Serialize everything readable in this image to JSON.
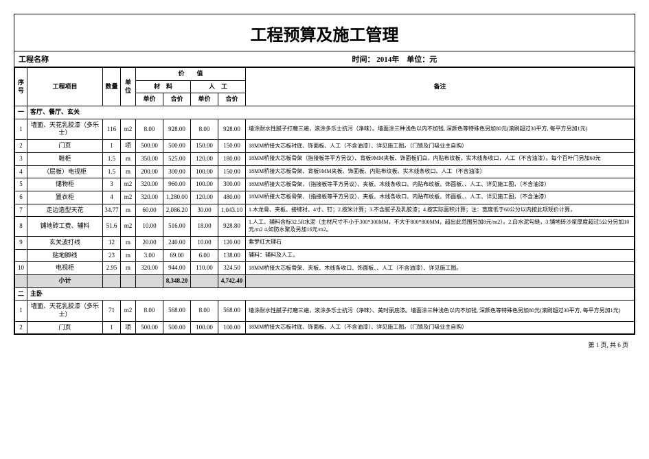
{
  "title": "工程预算及施工管理",
  "meta": {
    "project_label": "工程名称",
    "time_label": "时间：",
    "time_value": "2014年",
    "unit_label": "单位：元"
  },
  "headers": {
    "seq": "序号",
    "item": "工程项目",
    "qty": "数量",
    "unit": "单位",
    "cost_group": "价　　值",
    "material": "材　料",
    "labor": "人　工",
    "unitprice": "单价",
    "total": "合价",
    "remark": "备注"
  },
  "sections": [
    {
      "seq": "一",
      "name": "客厅、餐厅、玄关",
      "rows": [
        {
          "n": "1",
          "item": "墙面、天花乳胶漆（多乐士）",
          "qty": "116",
          "unit": "m2",
          "m_up": "8.00",
          "m_tp": "928.00",
          "l_up": "8.00",
          "l_tp": "928.00",
          "remark": "墙涂耐水性腻子打磨三遍，滚涂多乐士抗污（净味）。墙面涂三种浅色以内不加钱, 深颜色等特殊色另加80元(滚刷超过30平方, 每平方另加1元)"
        },
        {
          "n": "2",
          "item": "门页",
          "qty": "1",
          "unit": "项",
          "m_up": "500.00",
          "m_tp": "500.00",
          "l_up": "150.00",
          "l_tp": "150.00",
          "remark": "18MM桥接大芯板衬底、饰面板、人工（不含油漆）、详见施工图。（门锁及门吸业主自购）"
        },
        {
          "n": "3",
          "item": "鞋柜",
          "qty": "1.5",
          "unit": "m",
          "m_up": "350.00",
          "m_tp": "525.00",
          "l_up": "120.00",
          "l_tp": "180.00",
          "remark": "18MM桥接大芯板骨架（指接板等平方另议）、背板9MM夹板、饰面板扪白，内贴布纹板，实木线条收口，人工（不含油漆）。每个百叶门另加60元"
        },
        {
          "n": "4",
          "item": "（层板）电视柜",
          "qty": "1.5",
          "unit": "m",
          "m_up": "200.00",
          "m_tp": "300.00",
          "l_up": "100.00",
          "l_tp": "150.00",
          "remark": "18MM桥接大芯板骨架、背板9MM夹板、饰面板、内贴布纹板、实木线条收口、人工（不含油漆）"
        },
        {
          "n": "5",
          "item": "储物柜",
          "qty": "3",
          "unit": "m2",
          "m_up": "320.00",
          "m_tp": "960.00",
          "l_up": "100.00",
          "l_tp": "300.00",
          "remark": "18MM桥接大芯板骨架，（指接板等平方另议）、夹板、木线条收口、内贴布纹板、饰面板、、人工、详见施工图，（不含油漆）"
        },
        {
          "n": "6",
          "item": "置衣柜",
          "qty": "4",
          "unit": "m2",
          "m_up": "320.00",
          "m_tp": "1,280.00",
          "l_up": "120.00",
          "l_tp": "480.00",
          "remark": "18MM桥接大芯板骨架、（指接板等平方另议）、夹板、木线条收口、内贴布纹板、饰面板、、人工、详见施工图，（不含油漆）"
        },
        {
          "n": "7",
          "item": "走边造型天花",
          "qty": "34.77",
          "unit": "m",
          "m_up": "60.00",
          "m_tp": "2,086.20",
          "l_up": "30.00",
          "l_tp": "1,043.10",
          "remark": "1.木龙骨、夹板、接缝衬、4寸、钉；2.按米计算；3.不含腻子及乳胶漆；4.按实际面积计算；注：宽度低于60公分以内按此项规价计算，"
        },
        {
          "n": "8",
          "item": "铺地砖工费、辅料",
          "qty": "51.6",
          "unit": "m2",
          "m_up": "10.00",
          "m_tp": "516.00",
          "l_up": "18.00",
          "l_tp": "928.80",
          "remark": "1.人工、辅料含标32.5R水泥（主材尺寸不小于300*300MM，不大于800*800MM，超出此范围另加8元/m2）。2.白水泥勾缝，3.铺地砖沙浆厚度超过5公分另加10元/m2 4.如防水聚及另加16元/m2。"
        },
        {
          "n": "9",
          "item": "玄关波打线",
          "qty": "12",
          "unit": "m",
          "m_up": "20.00",
          "m_tp": "240.00",
          "l_up": "10.00",
          "l_tp": "120.00",
          "remark": "紫罗红大理石"
        },
        {
          "n": "",
          "item": "贴地脚线",
          "qty": "23",
          "unit": "m",
          "m_up": "3.00",
          "m_tp": "69.00",
          "l_up": "6.00",
          "l_tp": "138.00",
          "remark": "辅料：辅料及人工，"
        },
        {
          "n": "10",
          "item": "电视柜",
          "qty": "2.95",
          "unit": "m",
          "m_up": "320.00",
          "m_tp": "944.00",
          "l_up": "110.00",
          "l_tp": "324.50",
          "remark": "18MM桥接大芯板骨架、夹板、木线条收口、饰面板、、人工（不含油漆）、详见施工图。"
        }
      ],
      "subtotal": {
        "label": "小计",
        "m_tp": "8,348.20",
        "l_tp": "4,742.40"
      }
    },
    {
      "seq": "二",
      "name": "主卧",
      "rows": [
        {
          "n": "1",
          "item": "墙面、天花乳胶漆（多乐士）",
          "qty": "71",
          "unit": "m2",
          "m_up": "8.00",
          "m_tp": "568.00",
          "l_up": "8.00",
          "l_tp": "568.00",
          "remark": "墙涂耐水性腻子打磨三遍，滚涂多乐士抗污（净味）、美时丽底漆。墙面涂三种浅色以内不加钱, 深颜色等特殊色另加80元(滚刷超过30平方, 每平方另加1元)"
        },
        {
          "n": "2",
          "item": "门页",
          "qty": "1",
          "unit": "项",
          "m_up": "500.00",
          "m_tp": "500.00",
          "l_up": "100.00",
          "l_tp": "100.00",
          "remark": "18MM桥接大芯板衬底、饰面板、人工（不含油漆）、详见施工图。（门锁及门吸业主自购）"
        }
      ]
    }
  ],
  "footer": "第 1 页, 共 6 页"
}
